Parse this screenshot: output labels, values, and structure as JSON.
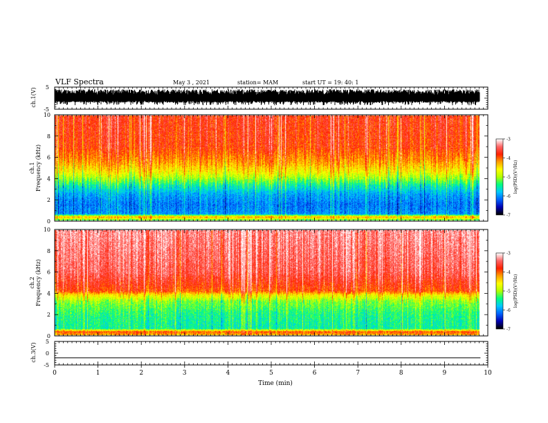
{
  "header": {
    "title": "VLF Spectra",
    "date": "May 3 , 2021",
    "station": "station= MAM",
    "start": "start UT = 19: 40: 1"
  },
  "colors": {
    "scale": [
      "#000000",
      "#0000b4",
      "#0064ff",
      "#00c8ff",
      "#00ff80",
      "#b4ff00",
      "#ffff00",
      "#ffa000",
      "#ff2000",
      "#ff6464",
      "#ffffff"
    ]
  },
  "chart_data": [
    {
      "type": "line",
      "panel": "ch1-waveform",
      "ylabel": "ch.1(V)",
      "ylim": [
        -5,
        5
      ],
      "yticks": [
        5,
        -5
      ],
      "xlim": [
        0,
        10
      ],
      "note_series": "dense noise waveform roughly between -3 and +4 V"
    },
    {
      "type": "heatmap",
      "panel": "ch1-spectrogram",
      "ylabel_top": "ch.1",
      "ylabel": "Frequency (kHz)",
      "ylim": [
        0,
        10
      ],
      "yticks": [
        "0",
        "2",
        "4",
        "6",
        "8",
        "10"
      ],
      "xlim": [
        0,
        9.83
      ],
      "colorbar": {
        "label": "log(PSD)(V²/Hz)",
        "range": [
          -7,
          -3
        ],
        "ticks": [
          "-3",
          "-4",
          "-5",
          "-6",
          "-7"
        ]
      },
      "profile_kHz_logPSD": [
        [
          0,
          -5.2
        ],
        [
          0.3,
          -4.2
        ],
        [
          0.6,
          -6.0
        ],
        [
          1.5,
          -6.1
        ],
        [
          2.5,
          -5.9
        ],
        [
          3.3,
          -5.5
        ],
        [
          4.0,
          -5.0
        ],
        [
          4.6,
          -4.6
        ],
        [
          5.5,
          -4.2
        ],
        [
          7.0,
          -3.8
        ],
        [
          10,
          -3.7
        ]
      ]
    },
    {
      "type": "heatmap",
      "panel": "ch2-spectrogram",
      "ylabel_top": "ch.2",
      "ylabel": "Frequency (kHz)",
      "ylim": [
        0,
        10
      ],
      "yticks": [
        "0",
        "2",
        "4",
        "6",
        "8",
        "10"
      ],
      "xlim": [
        0,
        9.83
      ],
      "colorbar": {
        "label": "log(PSD)(V²/Hz)",
        "range": [
          -7,
          -3
        ],
        "ticks": [
          "-3",
          "-4",
          "-5",
          "-6",
          "-7"
        ]
      },
      "profile_kHz_logPSD": [
        [
          0,
          -4.3
        ],
        [
          0.3,
          -3.9
        ],
        [
          0.6,
          -5.5
        ],
        [
          2.0,
          -5.4
        ],
        [
          3.2,
          -5.1
        ],
        [
          3.8,
          -4.6
        ],
        [
          4.2,
          -3.9
        ],
        [
          6.0,
          -3.5
        ],
        [
          10,
          -3.3
        ]
      ]
    },
    {
      "type": "line",
      "panel": "ch3-waveform",
      "ylabel": "ch.3(V)",
      "ylim": [
        -5,
        5
      ],
      "yticks": [
        5,
        0,
        -5
      ],
      "xlim": [
        0,
        10
      ],
      "xlabel": "Time (min)",
      "xticks": [
        "0",
        "1",
        "2",
        "3",
        "4",
        "5",
        "6",
        "7",
        "8",
        "9",
        "10"
      ],
      "x": [
        0,
        9.83
      ],
      "y": [
        -2,
        -2
      ]
    }
  ]
}
